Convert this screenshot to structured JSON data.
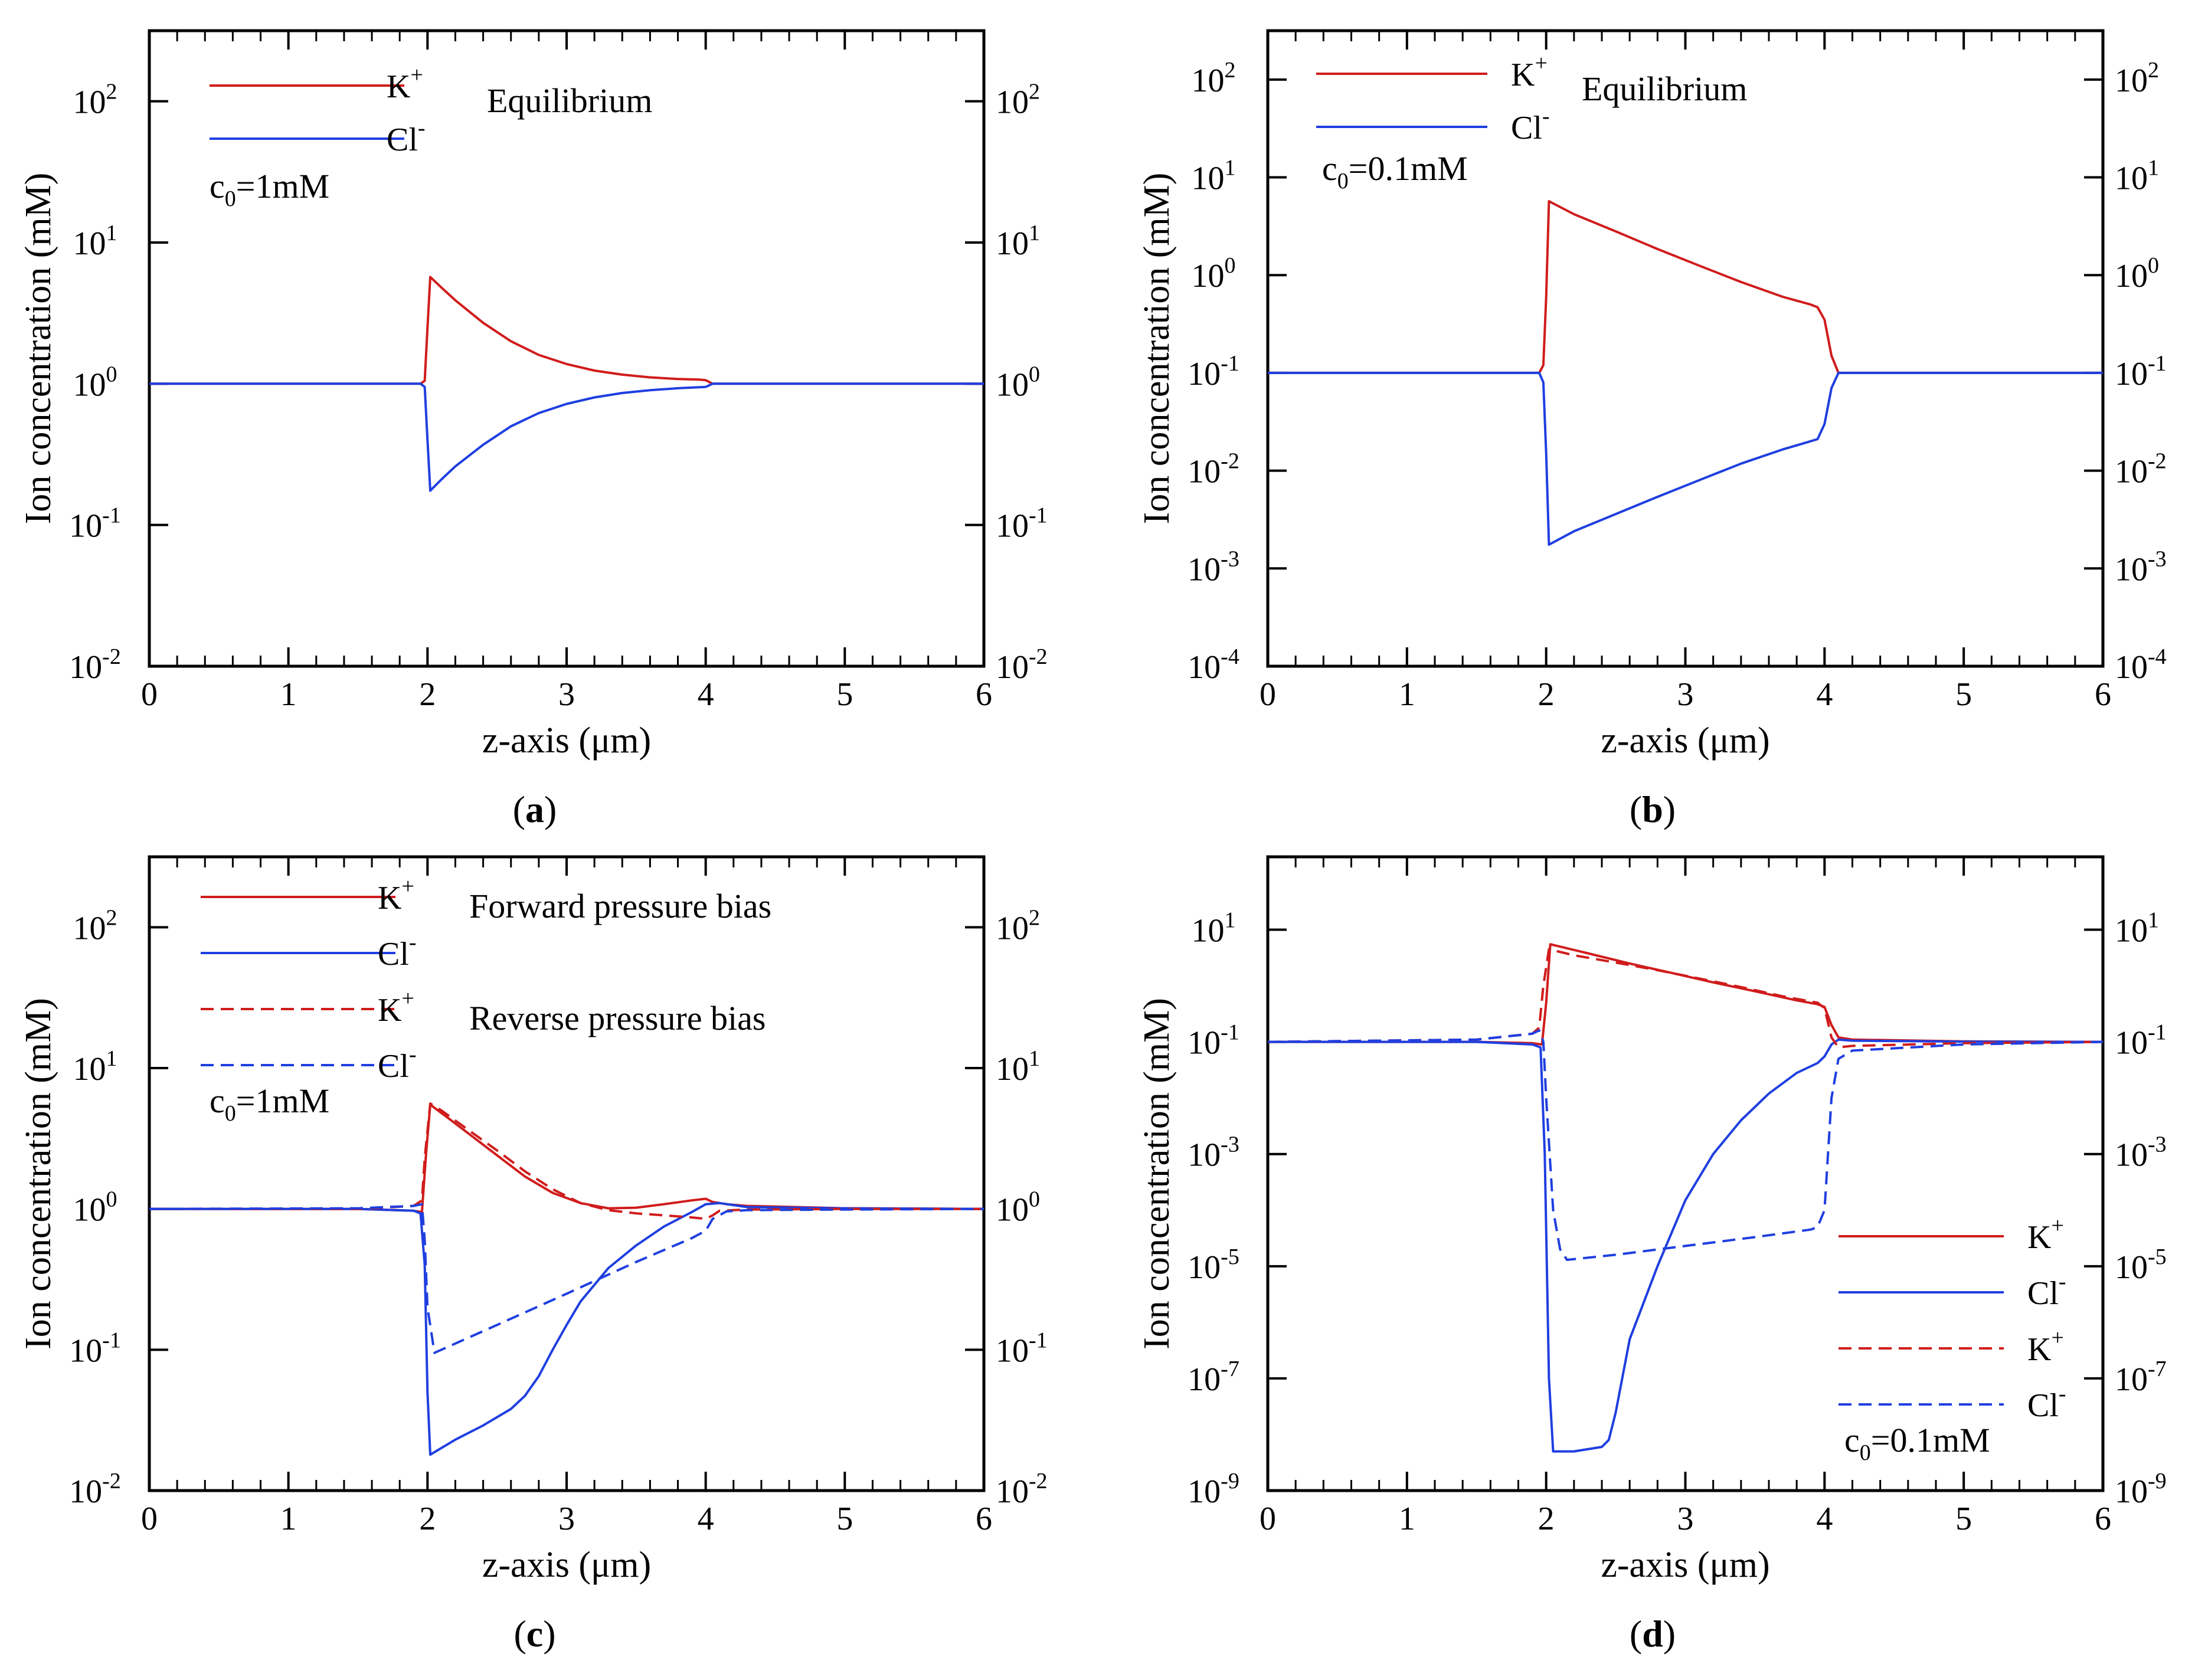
{
  "figure": {
    "panel_labels": [
      "a",
      "b",
      "c",
      "d"
    ]
  },
  "colors": {
    "K": "#d01c1c",
    "Cl": "#1f3fe0",
    "axis": "#000000"
  },
  "chart_data": [
    {
      "id": "a",
      "type": "line",
      "yscale": "log",
      "xlabel": "z-axis (μm)",
      "ylabel": "Ion concentration (mM)",
      "xlim": [
        0,
        6
      ],
      "xticks": [
        0,
        1,
        2,
        3,
        4,
        5,
        6
      ],
      "ylim_exp": [
        -2,
        2.5
      ],
      "yticks_exp": [
        -2,
        -1,
        0,
        1,
        2
      ],
      "right_axis": true,
      "legend": [
        {
          "name": "K+",
          "base": "K",
          "sup": "+",
          "color": "#d01c1c",
          "dash": false
        },
        {
          "name": "Cl-",
          "base": "Cl",
          "sup": "-",
          "color": "#1f3fe0",
          "dash": false
        }
      ],
      "annotations": [
        "Equilibrium"
      ],
      "conc": {
        "base": "c",
        "sub": "0",
        "tail": "=1mM"
      },
      "series": [
        {
          "name": "K+",
          "color": "#d01c1c",
          "dash": false,
          "x": [
            0,
            1.9,
            1.95,
            1.98,
            2.0,
            2.02,
            2.1,
            2.2,
            2.4,
            2.6,
            2.8,
            3.0,
            3.2,
            3.4,
            3.6,
            3.8,
            3.95,
            4.0,
            4.05,
            4.2,
            5.0,
            6.0
          ],
          "y": [
            1,
            1,
            1,
            1.05,
            2.5,
            5.7,
            4.8,
            3.9,
            2.7,
            2.0,
            1.6,
            1.38,
            1.24,
            1.16,
            1.11,
            1.08,
            1.07,
            1.06,
            1.0,
            1,
            1,
            1
          ]
        },
        {
          "name": "Cl-",
          "color": "#1f3fe0",
          "dash": false,
          "x": [
            0,
            1.9,
            1.95,
            1.98,
            2.0,
            2.02,
            2.1,
            2.2,
            2.4,
            2.6,
            2.8,
            3.0,
            3.2,
            3.4,
            3.6,
            3.8,
            3.95,
            4.0,
            4.05,
            4.2,
            5.0,
            6.0
          ],
          "y": [
            1,
            1,
            1,
            0.95,
            0.4,
            0.175,
            0.21,
            0.26,
            0.37,
            0.5,
            0.62,
            0.72,
            0.8,
            0.86,
            0.9,
            0.93,
            0.945,
            0.95,
            1.0,
            1,
            1,
            1
          ]
        }
      ]
    },
    {
      "id": "b",
      "type": "line",
      "yscale": "log",
      "xlabel": "z-axis (μm)",
      "ylabel": "Ion concentration (mM)",
      "xlim": [
        0,
        6
      ],
      "xticks": [
        0,
        1,
        2,
        3,
        4,
        5,
        6
      ],
      "ylim_exp": [
        -4,
        2.5
      ],
      "yticks_exp": [
        -4,
        -3,
        -2,
        -1,
        0,
        1,
        2
      ],
      "right_axis": true,
      "legend": [
        {
          "name": "K+",
          "base": "K",
          "sup": "+",
          "color": "#d01c1c",
          "dash": false
        },
        {
          "name": "Cl-",
          "base": "Cl",
          "sup": "-",
          "color": "#1f3fe0",
          "dash": false
        }
      ],
      "annotations": [
        "Equilibrium"
      ],
      "conc": {
        "base": "c",
        "sub": "0",
        "tail": "=0.1mM"
      },
      "series": [
        {
          "name": "K+",
          "color": "#d01c1c",
          "dash": false,
          "x": [
            0,
            1.9,
            1.95,
            1.98,
            2.0,
            2.02,
            2.2,
            2.5,
            2.8,
            3.1,
            3.4,
            3.7,
            3.9,
            3.95,
            4.0,
            4.05,
            4.1,
            4.2,
            5.0,
            6.0
          ],
          "y": [
            0.1,
            0.1,
            0.1,
            0.12,
            0.6,
            5.7,
            4.2,
            2.8,
            1.85,
            1.25,
            0.85,
            0.6,
            0.5,
            0.47,
            0.35,
            0.15,
            0.1,
            0.1,
            0.1,
            0.1
          ]
        },
        {
          "name": "Cl-",
          "color": "#1f3fe0",
          "dash": false,
          "x": [
            0,
            1.9,
            1.95,
            1.98,
            2.0,
            2.02,
            2.2,
            2.5,
            2.8,
            3.1,
            3.4,
            3.7,
            3.9,
            3.95,
            4.0,
            4.05,
            4.1,
            4.2,
            5.0,
            6.0
          ],
          "y": [
            0.1,
            0.1,
            0.1,
            0.08,
            0.015,
            0.00175,
            0.0024,
            0.0036,
            0.0054,
            0.008,
            0.0118,
            0.0165,
            0.02,
            0.021,
            0.03,
            0.07,
            0.1,
            0.1,
            0.1,
            0.1
          ]
        }
      ]
    },
    {
      "id": "c",
      "type": "line",
      "yscale": "log",
      "xlabel": "z-axis (μm)",
      "ylabel": "Ion concentration (mM)",
      "xlim": [
        0,
        6
      ],
      "xticks": [
        0,
        1,
        2,
        3,
        4,
        5,
        6
      ],
      "ylim_exp": [
        -2,
        2.5
      ],
      "yticks_exp": [
        -2,
        -1,
        0,
        1,
        2
      ],
      "right_axis": true,
      "legend": [
        {
          "name": "K+",
          "base": "K",
          "sup": "+",
          "color": "#d01c1c",
          "dash": false
        },
        {
          "name": "Cl-",
          "base": "Cl",
          "sup": "-",
          "color": "#1f3fe0",
          "dash": false
        },
        {
          "name": "K+",
          "base": "K",
          "sup": "+",
          "color": "#d01c1c",
          "dash": true
        },
        {
          "name": "Cl-",
          "base": "Cl",
          "sup": "-",
          "color": "#1f3fe0",
          "dash": true
        }
      ],
      "annotations": [
        "Forward pressure bias",
        "Reverse pressure bias"
      ],
      "conc": {
        "base": "c",
        "sub": "0",
        "tail": "=1mM"
      },
      "series": [
        {
          "name": "K+ forward",
          "color": "#d01c1c",
          "dash": false,
          "x": [
            0,
            1.5,
            1.9,
            1.96,
            1.99,
            2.02,
            2.1,
            2.3,
            2.5,
            2.7,
            2.9,
            3.1,
            3.3,
            3.5,
            3.7,
            3.9,
            4.0,
            4.05,
            4.15,
            4.3,
            5.0,
            6.0
          ],
          "y": [
            1,
            1,
            0.97,
            0.95,
            2.5,
            5.5,
            4.8,
            3.4,
            2.4,
            1.7,
            1.3,
            1.1,
            1.01,
            1.02,
            1.08,
            1.15,
            1.18,
            1.12,
            1.08,
            1.05,
            1.01,
            1
          ]
        },
        {
          "name": "Cl- forward",
          "color": "#1f3fe0",
          "dash": false,
          "x": [
            0,
            1.5,
            1.9,
            1.95,
            1.98,
            2.0,
            2.02,
            2.2,
            2.4,
            2.6,
            2.7,
            2.8,
            2.9,
            3.0,
            3.1,
            3.3,
            3.5,
            3.7,
            3.9,
            4.0,
            4.1,
            4.3,
            5.0,
            6.0
          ],
          "y": [
            1,
            1,
            0.97,
            0.93,
            0.4,
            0.05,
            0.018,
            0.023,
            0.029,
            0.038,
            0.047,
            0.065,
            0.1,
            0.15,
            0.22,
            0.38,
            0.55,
            0.75,
            0.95,
            1.08,
            1.1,
            1.03,
            1.01,
            1
          ]
        },
        {
          "name": "K+ reverse",
          "color": "#d01c1c",
          "dash": true,
          "x": [
            0,
            1.5,
            1.9,
            1.96,
            1.98,
            2.02,
            2.1,
            2.3,
            2.5,
            2.7,
            2.9,
            3.1,
            3.3,
            3.5,
            3.7,
            3.9,
            4.0,
            4.05,
            4.1,
            4.3,
            5.0,
            6.0
          ],
          "y": [
            1,
            1,
            1.05,
            1.15,
            2.3,
            5.6,
            5.0,
            3.6,
            2.6,
            1.85,
            1.38,
            1.1,
            0.98,
            0.93,
            0.9,
            0.87,
            0.85,
            0.9,
            0.97,
            0.99,
            1,
            1
          ]
        },
        {
          "name": "Cl- reverse",
          "color": "#1f3fe0",
          "dash": true,
          "x": [
            0,
            1.5,
            1.9,
            1.96,
            1.98,
            2.0,
            2.05,
            2.5,
            3.0,
            3.5,
            3.9,
            4.0,
            4.05,
            4.15,
            4.3,
            5.0,
            6.0
          ],
          "y": [
            1,
            1.01,
            1.05,
            1.08,
            0.6,
            0.2,
            0.095,
            0.15,
            0.25,
            0.42,
            0.62,
            0.7,
            0.85,
            0.96,
            0.98,
            0.99,
            1
          ]
        }
      ]
    },
    {
      "id": "d",
      "type": "line",
      "yscale": "log",
      "xlabel": "z-axis (μm)",
      "ylabel": "Ion concentration (mM)",
      "xlim": [
        0,
        6
      ],
      "xticks": [
        0,
        1,
        2,
        3,
        4,
        5,
        6
      ],
      "ylim_exp": [
        -9,
        2.3
      ],
      "yticks_exp": [
        -9,
        -7,
        -5,
        -3,
        -1,
        1
      ],
      "right_axis": true,
      "legend": [
        {
          "name": "K+",
          "base": "K",
          "sup": "+",
          "color": "#d01c1c",
          "dash": false
        },
        {
          "name": "Cl-",
          "base": "Cl",
          "sup": "-",
          "color": "#1f3fe0",
          "dash": false
        },
        {
          "name": "K+",
          "base": "K",
          "sup": "+",
          "color": "#d01c1c",
          "dash": true
        },
        {
          "name": "Cl-",
          "base": "Cl",
          "sup": "-",
          "color": "#1f3fe0",
          "dash": true
        }
      ],
      "annotations": [],
      "conc": {
        "base": "c",
        "sub": "0",
        "tail": "=0.1mM"
      },
      "series": [
        {
          "name": "K+ forward",
          "color": "#d01c1c",
          "dash": false,
          "x": [
            0,
            1.5,
            1.9,
            1.97,
            2.0,
            2.03,
            2.3,
            2.6,
            2.9,
            3.2,
            3.5,
            3.8,
            3.95,
            4.0,
            4.05,
            4.1,
            4.2,
            5.0,
            6.0
          ],
          "y": [
            0.1,
            0.1,
            0.095,
            0.09,
            0.5,
            5.5,
            3.8,
            2.5,
            1.7,
            1.15,
            0.8,
            0.55,
            0.47,
            0.42,
            0.2,
            0.12,
            0.11,
            0.102,
            0.1
          ]
        },
        {
          "name": "Cl- forward",
          "color": "#1f3fe0",
          "dash": false,
          "x": [
            0,
            1.5,
            1.9,
            1.96,
            1.99,
            2.02,
            2.05,
            2.2,
            2.4,
            2.45,
            2.5,
            2.6,
            2.8,
            3.0,
            3.2,
            3.4,
            3.6,
            3.8,
            3.95,
            4.0,
            4.05,
            4.1,
            4.2,
            5.0,
            6.0
          ],
          "y": [
            0.1,
            0.1,
            0.09,
            0.08,
            0.001,
            1e-07,
            5e-09,
            5e-09,
            6e-09,
            8e-09,
            2.5e-08,
            5e-07,
            1e-05,
            0.00015,
            0.001,
            0.004,
            0.012,
            0.028,
            0.042,
            0.055,
            0.09,
            0.11,
            0.105,
            0.101,
            0.1
          ]
        },
        {
          "name": "K+ reverse",
          "color": "#d01c1c",
          "dash": true,
          "x": [
            0,
            1.5,
            1.9,
            1.95,
            1.98,
            2.02,
            2.2,
            2.5,
            2.8,
            3.1,
            3.4,
            3.7,
            3.95,
            4.0,
            4.05,
            4.1,
            4.2,
            5.0,
            6.0
          ],
          "y": [
            0.1,
            0.11,
            0.14,
            0.18,
            1.0,
            4.5,
            3.5,
            2.6,
            1.9,
            1.35,
            0.95,
            0.65,
            0.5,
            0.4,
            0.12,
            0.08,
            0.085,
            0.095,
            0.1
          ]
        },
        {
          "name": "Cl- reverse",
          "color": "#1f3fe0",
          "dash": true,
          "x": [
            0,
            1.5,
            1.9,
            1.95,
            1.98,
            2.0,
            2.05,
            2.1,
            2.15,
            2.5,
            3.0,
            3.5,
            3.9,
            3.95,
            4.0,
            4.05,
            4.1,
            4.2,
            5.0,
            6.0
          ],
          "y": [
            0.1,
            0.11,
            0.14,
            0.16,
            0.1,
            0.01,
            0.0001,
            2e-05,
            1.3e-05,
            1.6e-05,
            2.3e-05,
            3.3e-05,
            4.5e-05,
            5e-05,
            0.0001,
            0.01,
            0.05,
            0.07,
            0.09,
            0.1
          ]
        }
      ]
    }
  ]
}
